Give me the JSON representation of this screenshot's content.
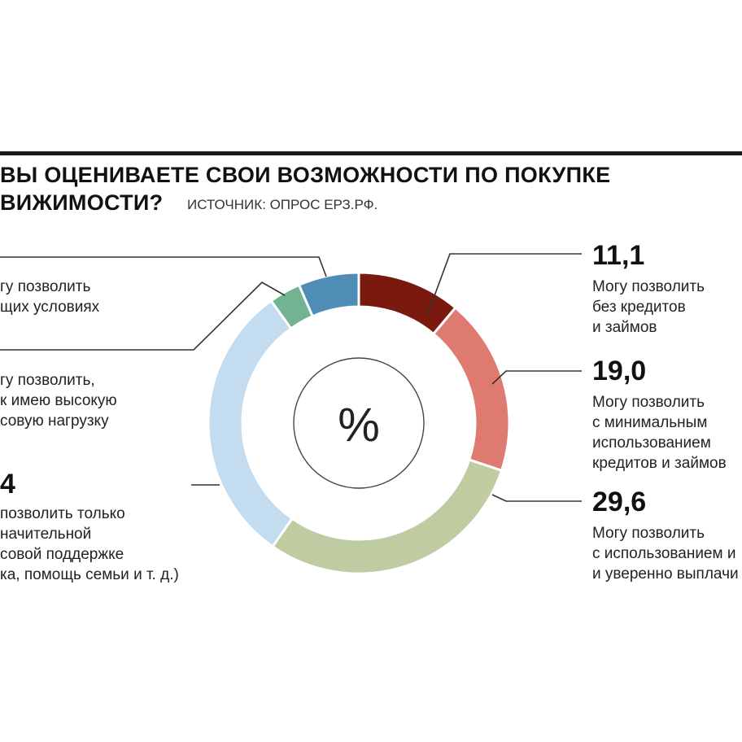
{
  "header": {
    "title_line1": "ВЫ ОЦЕНИВАЕТЕ СВОИ ВОЗМОЖНОСТИ ПО ПОКУПКЕ",
    "title_line2": "ВИЖИМОСТИ?",
    "source": "ИСТОЧНИК: ОПРОС ЕРЗ.РФ."
  },
  "center_symbol": "%",
  "colors": {
    "dark_red": "#7a1a0e",
    "salmon": "#de7a70",
    "sage": "#bfcba0",
    "light_blue": "#c4dcf0",
    "teal": "#72b391",
    "steel_blue": "#4f8db7",
    "rule": "#1a1a1a",
    "leader": "#333333"
  },
  "left_labels": {
    "small": "гу позволить\nщих условиях",
    "load": "гу позволить,\nк имею высокую\nсовую нагрузку",
    "support_value": "4",
    "support": "позволить только\nначительной\nсовой поддержке\nка, помощь семьи и т. д.)"
  },
  "right_labels": {
    "v1": "11,1",
    "l1": "Могу позволить\nбез кредитов\nи займов",
    "v2": "19,0",
    "l2": "Могу позволить\nс минимальным\nиспользованием\nкредитов и займов",
    "v3": "29,6",
    "l3": "Могу позволить\nс использованием и\nи уверенно выплачи"
  },
  "chart_data": {
    "type": "donut",
    "unit": "%",
    "series": [
      {
        "label": "Могу позволить без кредитов и займов",
        "value": 11.1,
        "color": "#7a1a0e"
      },
      {
        "label": "Могу позволить с минимальным использованием кредитов и займов",
        "value": 19.0,
        "color": "#de7a70"
      },
      {
        "label": "Могу позволить с использованием и и уверенно выплачи",
        "value": 29.6,
        "color": "#bfcba0"
      },
      {
        "label": "позволить только начительной совой поддержке ка, помощь семьи и т. д.)",
        "value": 30.4,
        "color": "#c4dcf0",
        "value_visible": "4"
      },
      {
        "label": "гу позволить, к имею высокую совую нагрузку",
        "value": 3.4,
        "color": "#72b391"
      },
      {
        "label": "гу позволить щих условиях",
        "value": 6.5,
        "color": "#4f8db7"
      }
    ]
  }
}
